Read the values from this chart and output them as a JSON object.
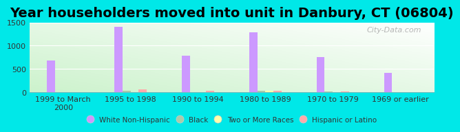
{
  "title": "Year householders moved into unit in Danbury, CT (06804)",
  "categories": [
    "1999 to March\n2000",
    "1995 to 1998",
    "1990 to 1994",
    "1980 to 1989",
    "1970 to 1979",
    "1969 or earlier"
  ],
  "white_non_hispanic": [
    680,
    1400,
    790,
    1290,
    760,
    420
  ],
  "black": [
    8,
    30,
    8,
    28,
    20,
    8
  ],
  "two_or_more_races": [
    5,
    8,
    5,
    38,
    5,
    5
  ],
  "hispanic_or_latino": [
    8,
    60,
    38,
    38,
    15,
    8
  ],
  "bar_width": 0.12,
  "colors": {
    "white_non_hispanic": "#cc99ff",
    "black": "#aaccaa",
    "two_or_more_races": "#ffffaa",
    "hispanic_or_latino": "#ffaaaa"
  },
  "legend_labels": [
    "White Non-Hispanic",
    "Black",
    "Two or More Races",
    "Hispanic or Latino"
  ],
  "ylim": [
    0,
    1500
  ],
  "yticks": [
    0,
    500,
    1000,
    1500
  ],
  "background_outer": "#00e8e8",
  "watermark": "City-Data.com",
  "title_fontsize": 14,
  "tick_fontsize": 8
}
